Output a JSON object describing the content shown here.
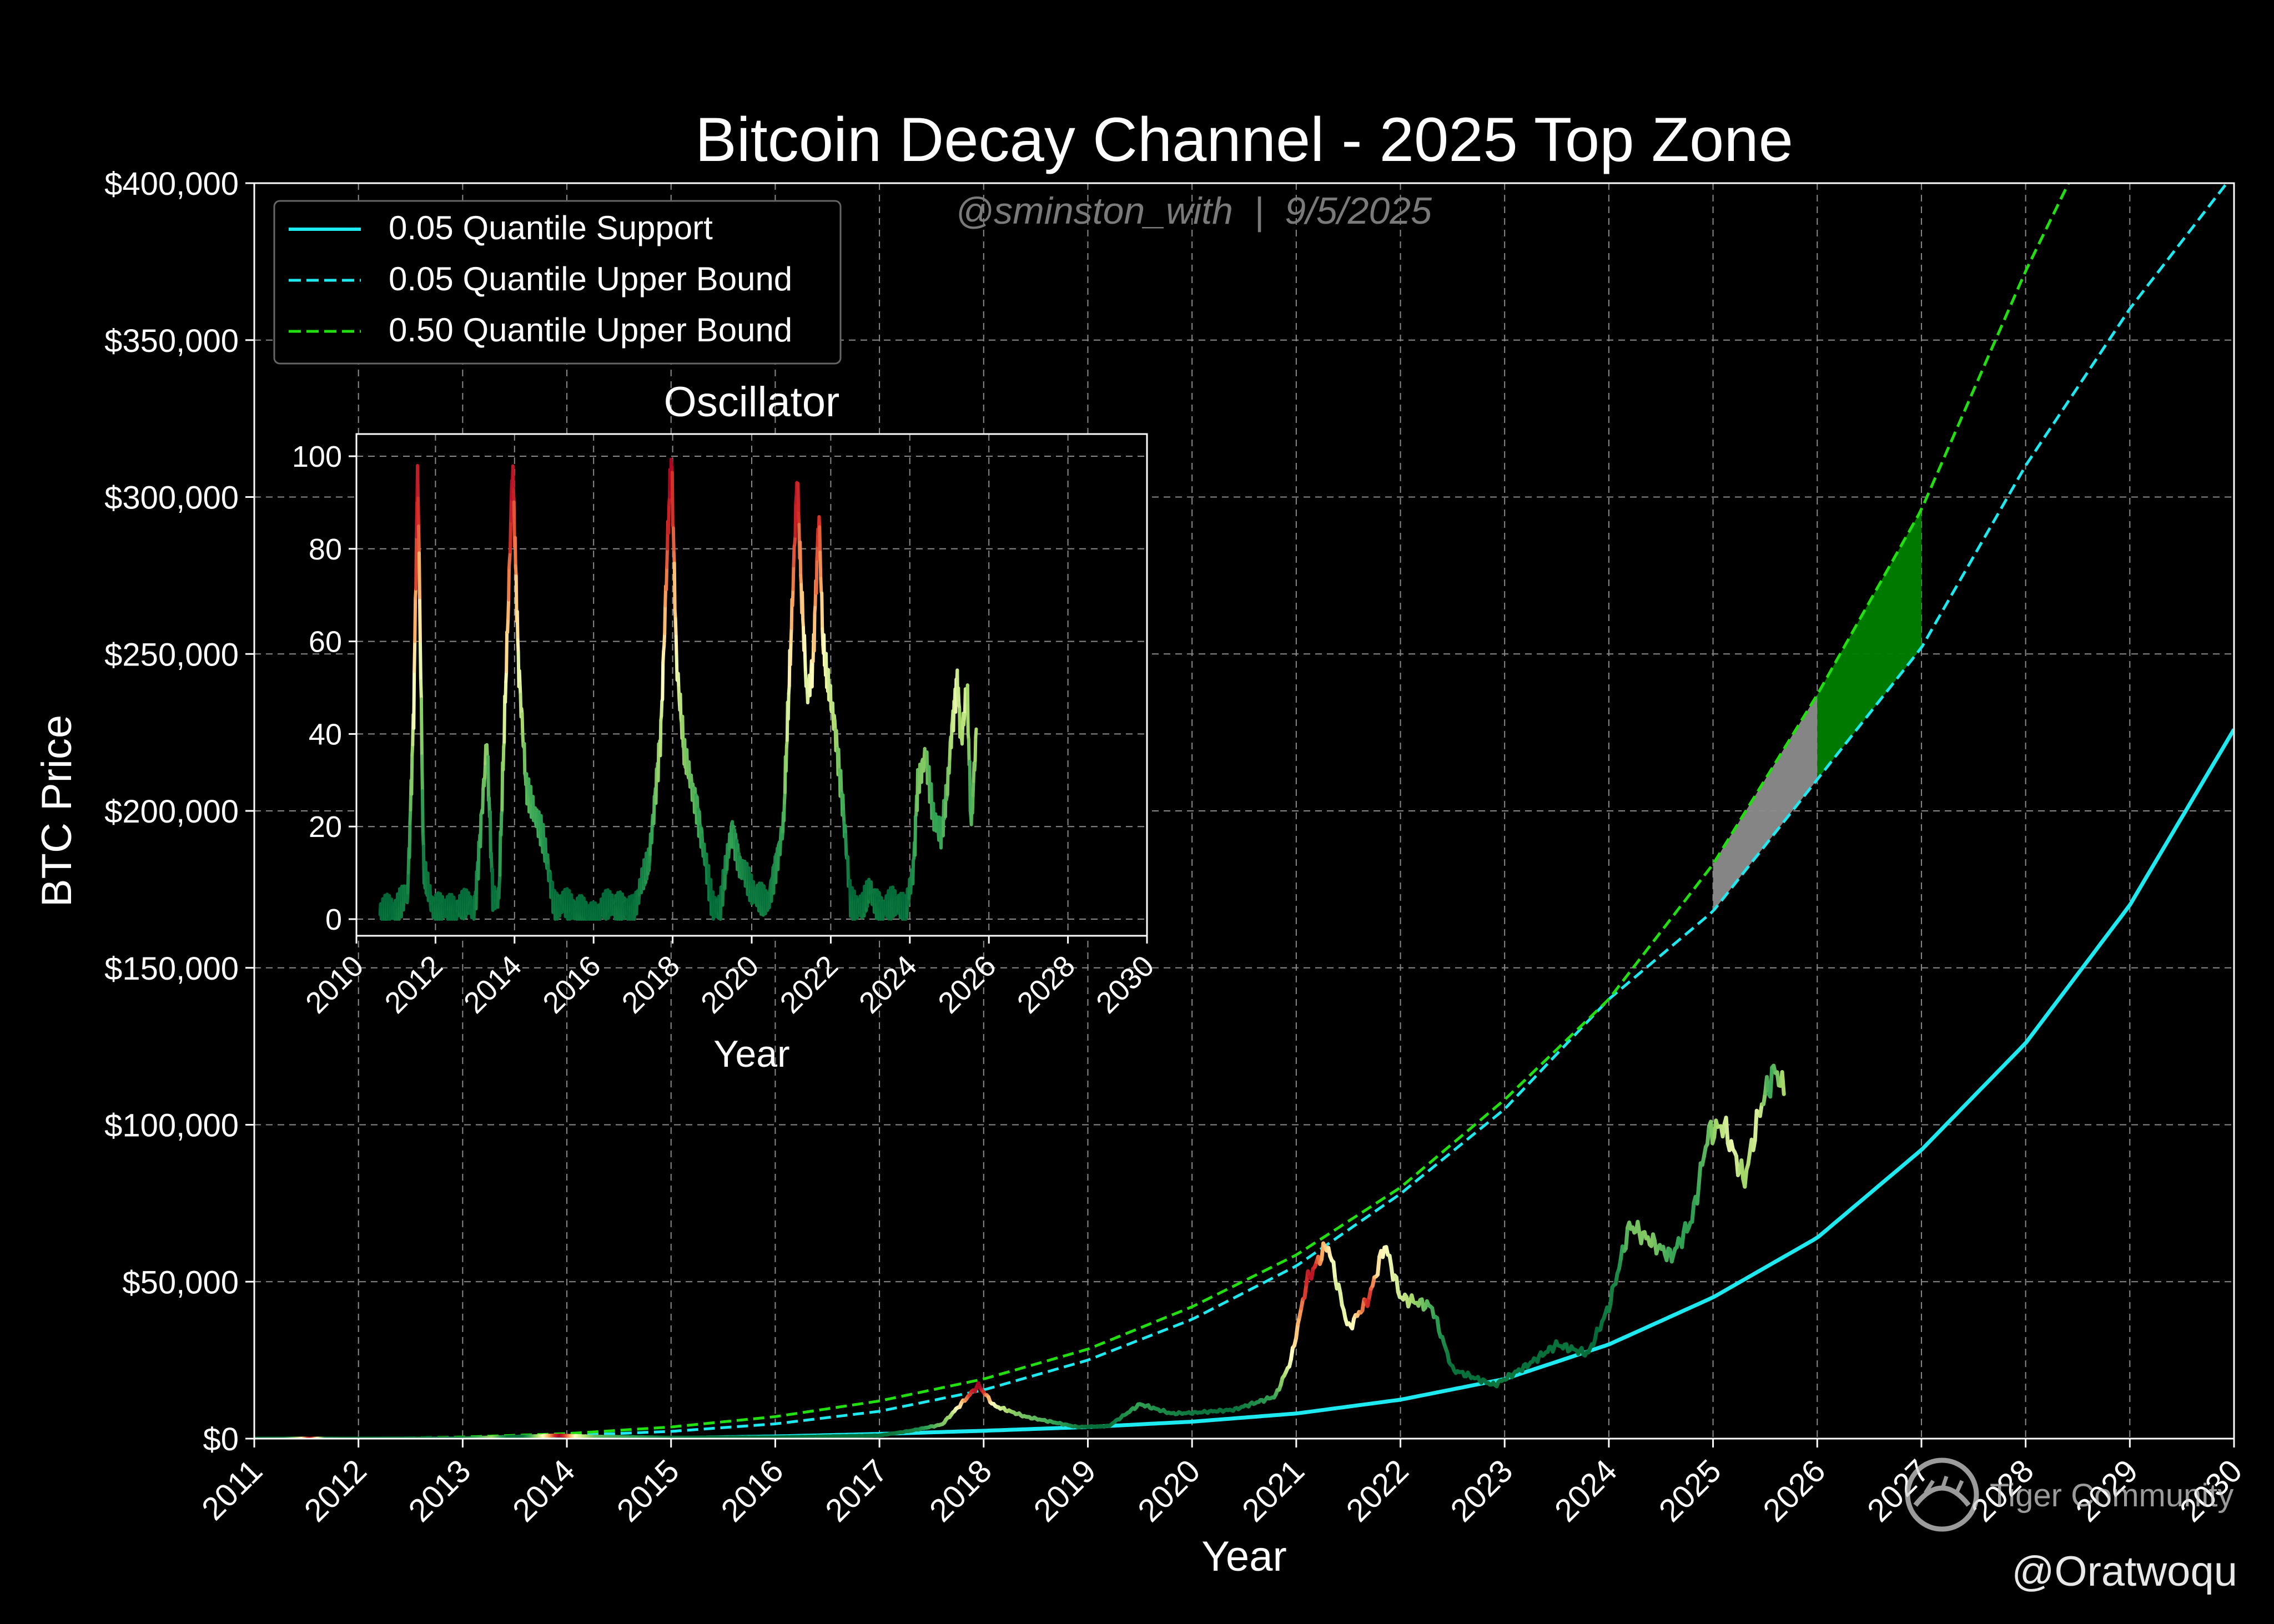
{
  "chart_data": [
    {
      "type": "line",
      "title": "Bitcoin Decay Channel - 2025 Top Zone",
      "subtitle": "@sminston_with  |  9/5/2025",
      "xlabel": "Year",
      "ylabel": "BTC Price",
      "xlim": [
        2011,
        2030
      ],
      "ylim": [
        0,
        400000
      ],
      "x_ticks": [
        "2011",
        "2012",
        "2013",
        "2014",
        "2015",
        "2016",
        "2017",
        "2018",
        "2019",
        "2020",
        "2021",
        "2022",
        "2023",
        "2024",
        "2025",
        "2026",
        "2027",
        "2028",
        "2029",
        "2030"
      ],
      "y_ticks": [
        "$0",
        "$50,000",
        "$100,000",
        "$150,000",
        "$200,000",
        "$250,000",
        "$300,000",
        "$350,000",
        "$400,000"
      ],
      "grid": true,
      "legend_position": "top-left",
      "series": [
        {
          "name": "0.05 Quantile Support",
          "style": "solid",
          "color": "#1de9f0",
          "x": [
            2011,
            2012,
            2013,
            2014,
            2015,
            2016,
            2017,
            2018,
            2019,
            2020,
            2021,
            2022,
            2023,
            2024,
            2025,
            2026,
            2027,
            2028,
            2029,
            2030
          ],
          "y": [
            0,
            0,
            0,
            0,
            200,
            700,
            1500,
            2500,
            3700,
            5400,
            8000,
            12400,
            19000,
            30000,
            45000,
            64000,
            92000,
            126000,
            170000,
            226000
          ]
        },
        {
          "name": "0.05 Quantile Upper Bound",
          "style": "dashed",
          "color": "#1de9f0",
          "x": [
            2011,
            2012,
            2013,
            2014,
            2015,
            2016,
            2017,
            2018,
            2019,
            2020,
            2021,
            2022,
            2023,
            2024,
            2025,
            2026,
            2027,
            2028,
            2029,
            2030
          ],
          "y": [
            0,
            0,
            0,
            1000,
            2300,
            4700,
            8700,
            15500,
            25000,
            38000,
            55000,
            78000,
            105000,
            140000,
            168000,
            210000,
            252000,
            310000,
            360000,
            403000
          ]
        },
        {
          "name": "0.50 Quantile Upper Bound",
          "style": "dashed",
          "color": "#22e010",
          "x": [
            2011,
            2012,
            2013,
            2014,
            2015,
            2016,
            2017,
            2018,
            2019,
            2020,
            2021,
            2022,
            2023,
            2024,
            2025,
            2026,
            2027,
            2028,
            2029
          ],
          "y": [
            0,
            0,
            500,
            1600,
            3700,
            7000,
            12000,
            19000,
            28500,
            42000,
            58500,
            80000,
            108000,
            140000,
            183000,
            237000,
            296000,
            372000,
            440000
          ]
        },
        {
          "name": "BTC Price",
          "style": "solid",
          "color_scale": "RdYlGn_r",
          "x": [
            2011,
            2012,
            2013,
            2013.9,
            2014.3,
            2015,
            2016,
            2017,
            2017.3,
            2017.6,
            2017.95,
            2018.1,
            2018.4,
            2018.9,
            2019.2,
            2019.5,
            2019.8,
            2020,
            2020.4,
            2020.8,
            2020.95,
            2021.1,
            2021.3,
            2021.5,
            2021.7,
            2021.85,
            2022.0,
            2022.3,
            2022.5,
            2022.9,
            2023.2,
            2023.5,
            2023.8,
            2024.0,
            2024.2,
            2024.4,
            2024.6,
            2024.8,
            2024.95,
            2025.1,
            2025.3,
            2025.45,
            2025.6,
            2025.68
          ],
          "y": [
            5,
            7,
            100,
            1000,
            600,
            300,
            400,
            1000,
            2500,
            4500,
            17000,
            10500,
            7000,
            3700,
            4000,
            11000,
            8000,
            8200,
            9200,
            13500,
            25000,
            50000,
            62000,
            35000,
            45000,
            62000,
            45000,
            42000,
            22000,
            17000,
            23000,
            30000,
            27000,
            42000,
            68000,
            63000,
            58000,
            70000,
            97000,
            100000,
            82000,
            105000,
            118000,
            110000
          ]
        }
      ],
      "shaded_regions": [
        {
          "x_range": [
            2025,
            2026
          ],
          "between": [
            "0.05 Quantile Upper Bound",
            "0.50 Quantile Upper Bound"
          ],
          "color": "#8c8c8c"
        },
        {
          "x_range": [
            2026,
            2027
          ],
          "between": [
            "0.05 Quantile Upper Bound",
            "0.50 Quantile Upper Bound"
          ],
          "color": "#008000"
        }
      ]
    },
    {
      "type": "line",
      "title": "Oscillator",
      "xlabel": "Year",
      "ylabel": "",
      "xlim": [
        2010,
        2030
      ],
      "ylim": [
        0,
        100
      ],
      "x_ticks": [
        "2010",
        "2012",
        "2014",
        "2016",
        "2018",
        "2020",
        "2022",
        "2024",
        "2026",
        "2028",
        "2030"
      ],
      "y_ticks": [
        "0",
        "20",
        "40",
        "60",
        "80",
        "100"
      ],
      "grid": true,
      "color_scale": "RdYlGn_r",
      "series": [
        {
          "x": [
            2010.6,
            2011.0,
            2011.3,
            2011.45,
            2011.55,
            2011.7,
            2011.9,
            2012.5,
            2013.0,
            2013.3,
            2013.45,
            2013.6,
            2013.85,
            2013.95,
            2014.1,
            2014.3,
            2014.7,
            2015.0,
            2015.5,
            2016.0,
            2016.5,
            2017.0,
            2017.4,
            2017.7,
            2017.9,
            2017.97,
            2018.1,
            2018.3,
            2018.6,
            2019.0,
            2019.2,
            2019.5,
            2019.7,
            2020.0,
            2020.4,
            2020.8,
            2021.0,
            2021.15,
            2021.25,
            2021.4,
            2021.55,
            2021.7,
            2021.8,
            2021.9,
            2022.1,
            2022.3,
            2022.5,
            2022.8,
            2023.0,
            2023.3,
            2023.6,
            2023.9,
            2024.1,
            2024.2,
            2024.4,
            2024.6,
            2024.8,
            2024.95,
            2025.05,
            2025.2,
            2025.3,
            2025.45,
            2025.55,
            2025.68
          ],
          "y": [
            1,
            2,
            6,
            45,
            99,
            10,
            3,
            2,
            3,
            38,
            5,
            4,
            70,
            99,
            55,
            28,
            18,
            4,
            2,
            1,
            3,
            2,
            12,
            40,
            88,
            100,
            55,
            35,
            25,
            3,
            2,
            20,
            12,
            6,
            3,
            20,
            62,
            96,
            72,
            48,
            55,
            88,
            60,
            52,
            42,
            25,
            4,
            2,
            6,
            2,
            4,
            1,
            12,
            30,
            35,
            22,
            18,
            28,
            40,
            52,
            38,
            50,
            20,
            40
          ]
        }
      ]
    }
  ],
  "legend": [
    {
      "label": "0.05 Quantile Support",
      "style": "solid",
      "color": "#1de9f0"
    },
    {
      "label": "0.05 Quantile Upper Bound",
      "style": "dashed",
      "color": "#1de9f0"
    },
    {
      "label": "0.50 Quantile Upper Bound",
      "style": "dashed",
      "color": "#22e010"
    }
  ],
  "watermarks": {
    "tiger": "Tiger Community",
    "author": "@Oratwoqu"
  },
  "colors": {
    "background": "#000000",
    "text": "#ffffff",
    "grid": "#8a8a8a",
    "support": "#1de9f0",
    "median_bound": "#22e010",
    "zone_gray": "#8c8c8c",
    "zone_green": "#008000"
  }
}
